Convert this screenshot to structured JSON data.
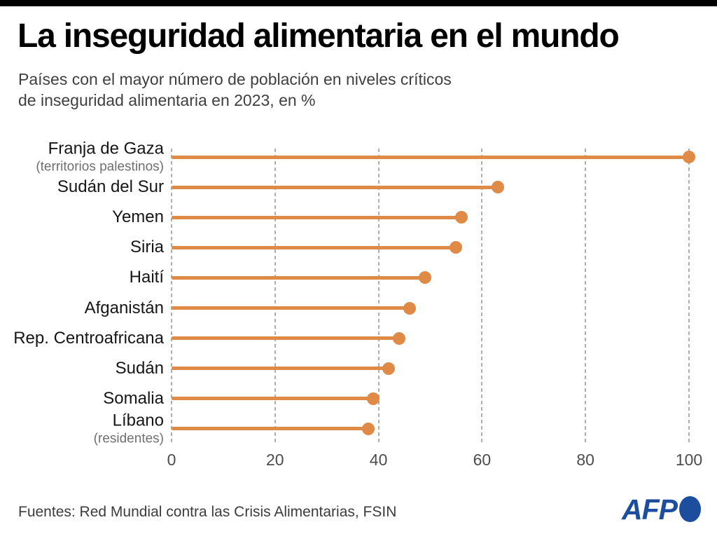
{
  "header": {
    "title": "La inseguridad alimentaria en el mundo",
    "subtitle_line1": "Países con el mayor número de población en niveles críticos",
    "subtitle_line2": "de inseguridad alimentaria en 2023, en %"
  },
  "chart_data": {
    "type": "bar",
    "subtype": "horizontal-lollipop",
    "title": "La inseguridad alimentaria en el mundo",
    "subtitle": "Países con el mayor número de población en niveles críticos de inseguridad alimentaria en 2023, en %",
    "unit": "%",
    "categories": [
      "Franja de Gaza",
      "Sudán del Sur",
      "Yemen",
      "Siria",
      "Haití",
      "Afganistán",
      "Rep. Centroafricana",
      "Sudán",
      "Somalia",
      "Líbano"
    ],
    "sublabels": [
      "(territorios palestinos)",
      "",
      "",
      "",
      "",
      "",
      "",
      "",
      "",
      "(residentes)"
    ],
    "values": [
      100,
      63,
      56,
      55,
      49,
      46,
      44,
      42,
      39,
      38
    ],
    "x_ticks": [
      "0",
      "20",
      "40",
      "60",
      "80",
      "100"
    ],
    "x_tick_values": [
      0,
      20,
      40,
      60,
      80,
      100
    ],
    "xlim": [
      0,
      100
    ],
    "xlabel": "",
    "ylabel": "",
    "grid": "vertical-dashed",
    "legend": "none",
    "accent_color": "#E08A47",
    "gridline_color": "#AEAEAE"
  },
  "footer": {
    "source": "Fuentes: Red Mundial contra las Crisis Alimentarias, FSIN",
    "afp_logo_text": "AFP",
    "afp_blue": "#1D4E9E"
  }
}
